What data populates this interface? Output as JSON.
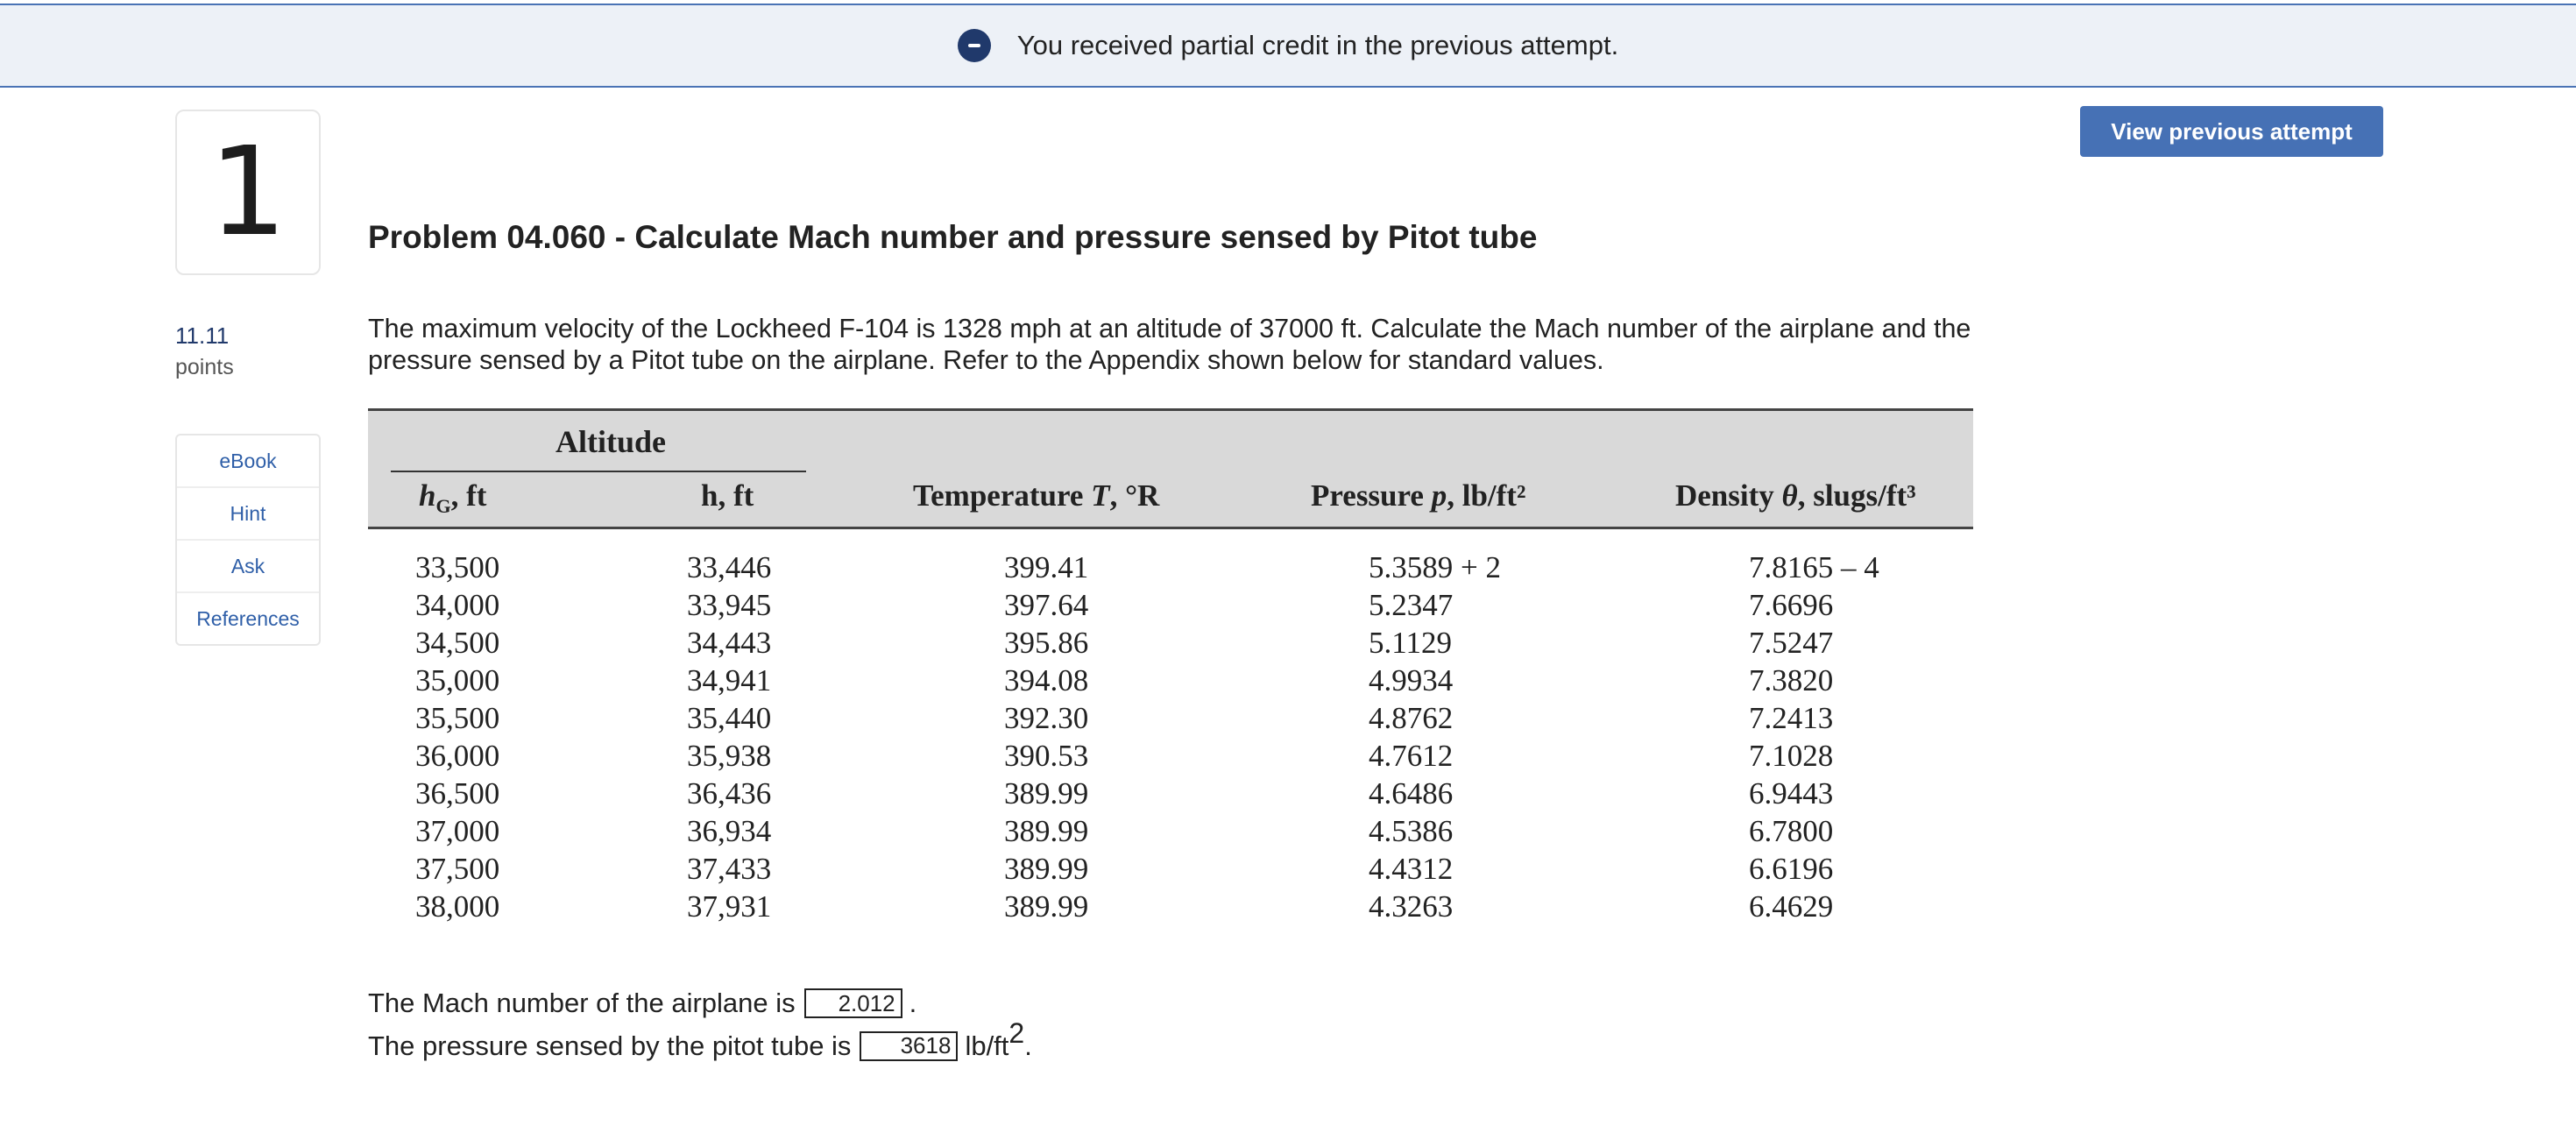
{
  "banner": {
    "icon": "minus-circle-icon",
    "text": "You received partial credit in the previous attempt."
  },
  "question": {
    "number": "1",
    "points_value": "11.11",
    "points_label": "points"
  },
  "side_tools": [
    {
      "label": "eBook"
    },
    {
      "label": "Hint"
    },
    {
      "label": "Ask"
    },
    {
      "label": "References"
    }
  ],
  "toolbar": {
    "view_previous_label": "View previous attempt"
  },
  "problem": {
    "title": "Problem 04.060 - Calculate Mach number and pressure sensed by Pitot tube",
    "text": "The maximum velocity of the Lockheed F-104 is 1328 mph at an altitude of 37000 ft. Calculate the Mach number of the airplane and the pressure sensed by a Pitot tube on the airplane. Refer to the Appendix shown below for standard values."
  },
  "table": {
    "group_header": "Altitude",
    "headers": {
      "hg_main": "h",
      "hg_sub": "G",
      "hg_unit": ", ft",
      "h": "h, ft",
      "temp_prefix": "Temperature ",
      "temp_var": "T",
      "temp_unit": ", °R",
      "press_prefix": "Pressure ",
      "press_var": "p",
      "press_unit": ", lb/ft²",
      "dens_prefix": "Density ",
      "dens_var": "θ",
      "dens_unit": ", slugs/ft³"
    },
    "hg": [
      "33,500",
      "34,000",
      "34,500",
      "35,000",
      "35,500",
      "36,000",
      "36,500",
      "37,000",
      "37,500",
      "38,000"
    ],
    "h": [
      "33,446",
      "33,945",
      "34,443",
      "34,941",
      "35,440",
      "35,938",
      "36,436",
      "36,934",
      "37,433",
      "37,931"
    ],
    "temperature": [
      "399.41",
      "397.64",
      "395.86",
      "394.08",
      "392.30",
      "390.53",
      "389.99",
      "389.99",
      "389.99",
      "389.99"
    ],
    "pressure": [
      "5.3589 + 2",
      "5.2347",
      "5.1129",
      "4.9934",
      "4.8762",
      "4.7612",
      "4.6486",
      "4.5386",
      "4.4312",
      "4.3263"
    ],
    "density": [
      "7.8165 – 4",
      "7.6696",
      "7.5247",
      "7.3820",
      "7.2413",
      "7.1028",
      "6.9443",
      "6.7800",
      "6.6196",
      "6.4629"
    ]
  },
  "answers": {
    "mach_prefix": "The Mach number of the airplane is",
    "mach_value": "2.012",
    "mach_suffix": ".",
    "pressure_prefix": "The pressure sensed by the pitot tube is",
    "pressure_value": "3618",
    "pressure_unit": "lb/ft",
    "pressure_exp": "2",
    "pressure_suffix": "."
  }
}
